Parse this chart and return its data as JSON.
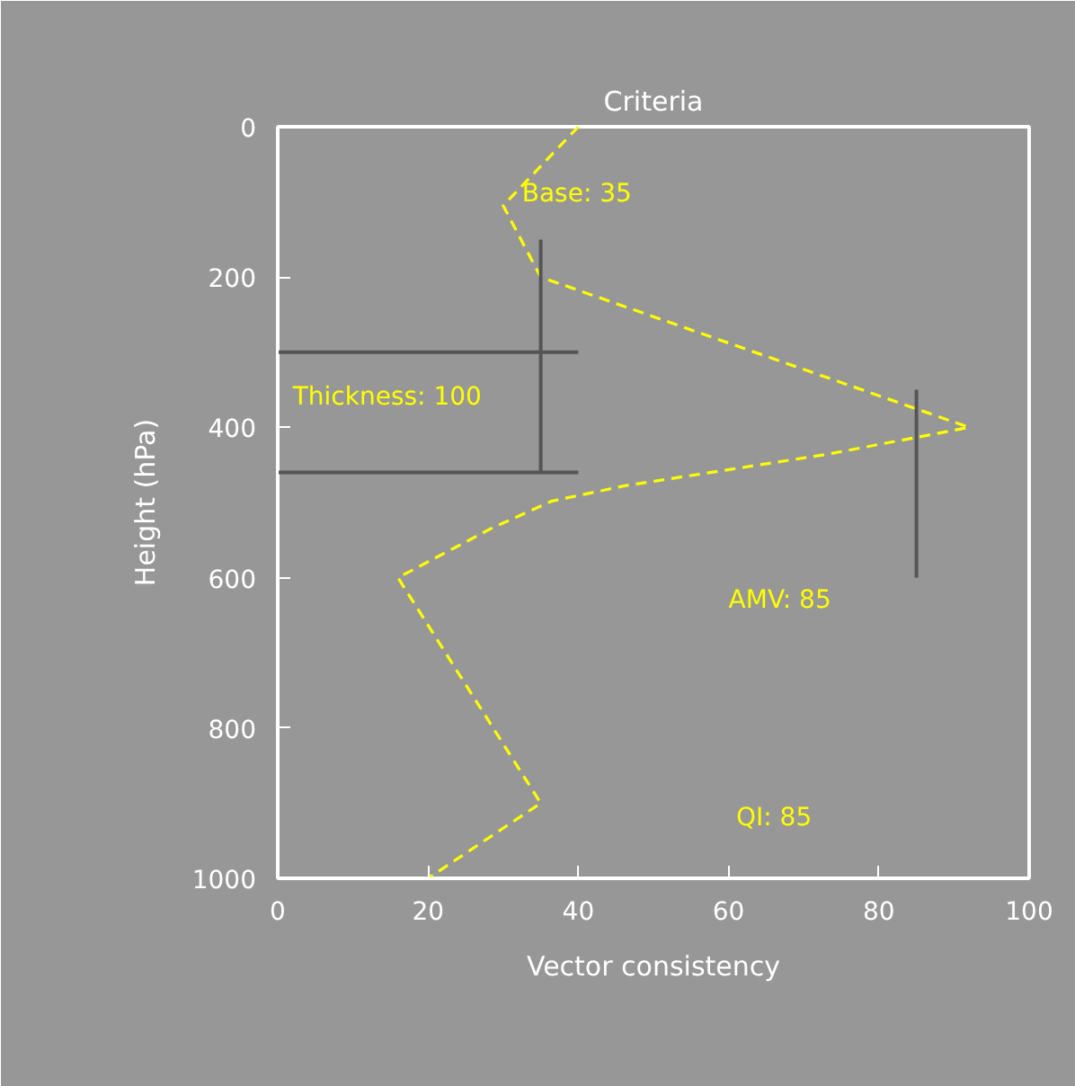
{
  "chart_data": {
    "type": "line",
    "title": "Criteria",
    "xlabel": "Vector consistency",
    "ylabel": "Height (hPa)",
    "xlim": [
      0,
      100
    ],
    "xticks": [
      0,
      20,
      40,
      60,
      80,
      100
    ],
    "ylim": [
      1000,
      0
    ],
    "yticks": [
      0,
      200,
      400,
      600,
      800,
      1000
    ],
    "grid": false,
    "marker": "none",
    "series": [
      {
        "color": "#ffff00",
        "line_style": "dashed",
        "x": [
          40,
          30,
          35,
          92,
          73,
          46,
          36.5,
          28.5,
          16,
          35,
          20
        ],
        "values": [
          0,
          105,
          200,
          400,
          436,
          478,
          498,
          534,
          600,
          900,
          1000
        ]
      },
      {
        "color": "#555555",
        "line_style": "solid",
        "x": [
          35,
          35
        ],
        "values": [
          150,
          460
        ]
      },
      {
        "color": "#555555",
        "line_style": "solid",
        "x": [
          0,
          40
        ],
        "values": [
          300,
          300
        ]
      },
      {
        "color": "#555555",
        "line_style": "solid",
        "x": [
          0,
          40
        ],
        "values": [
          460,
          460
        ]
      },
      {
        "color": "#555555",
        "line_style": "solid",
        "x": [
          85,
          85
        ],
        "values": [
          350,
          600
        ]
      }
    ],
    "annotations": [
      "Base: 35",
      "Thickness: 100",
      "AMV: 85",
      "QI: 85"
    ]
  }
}
